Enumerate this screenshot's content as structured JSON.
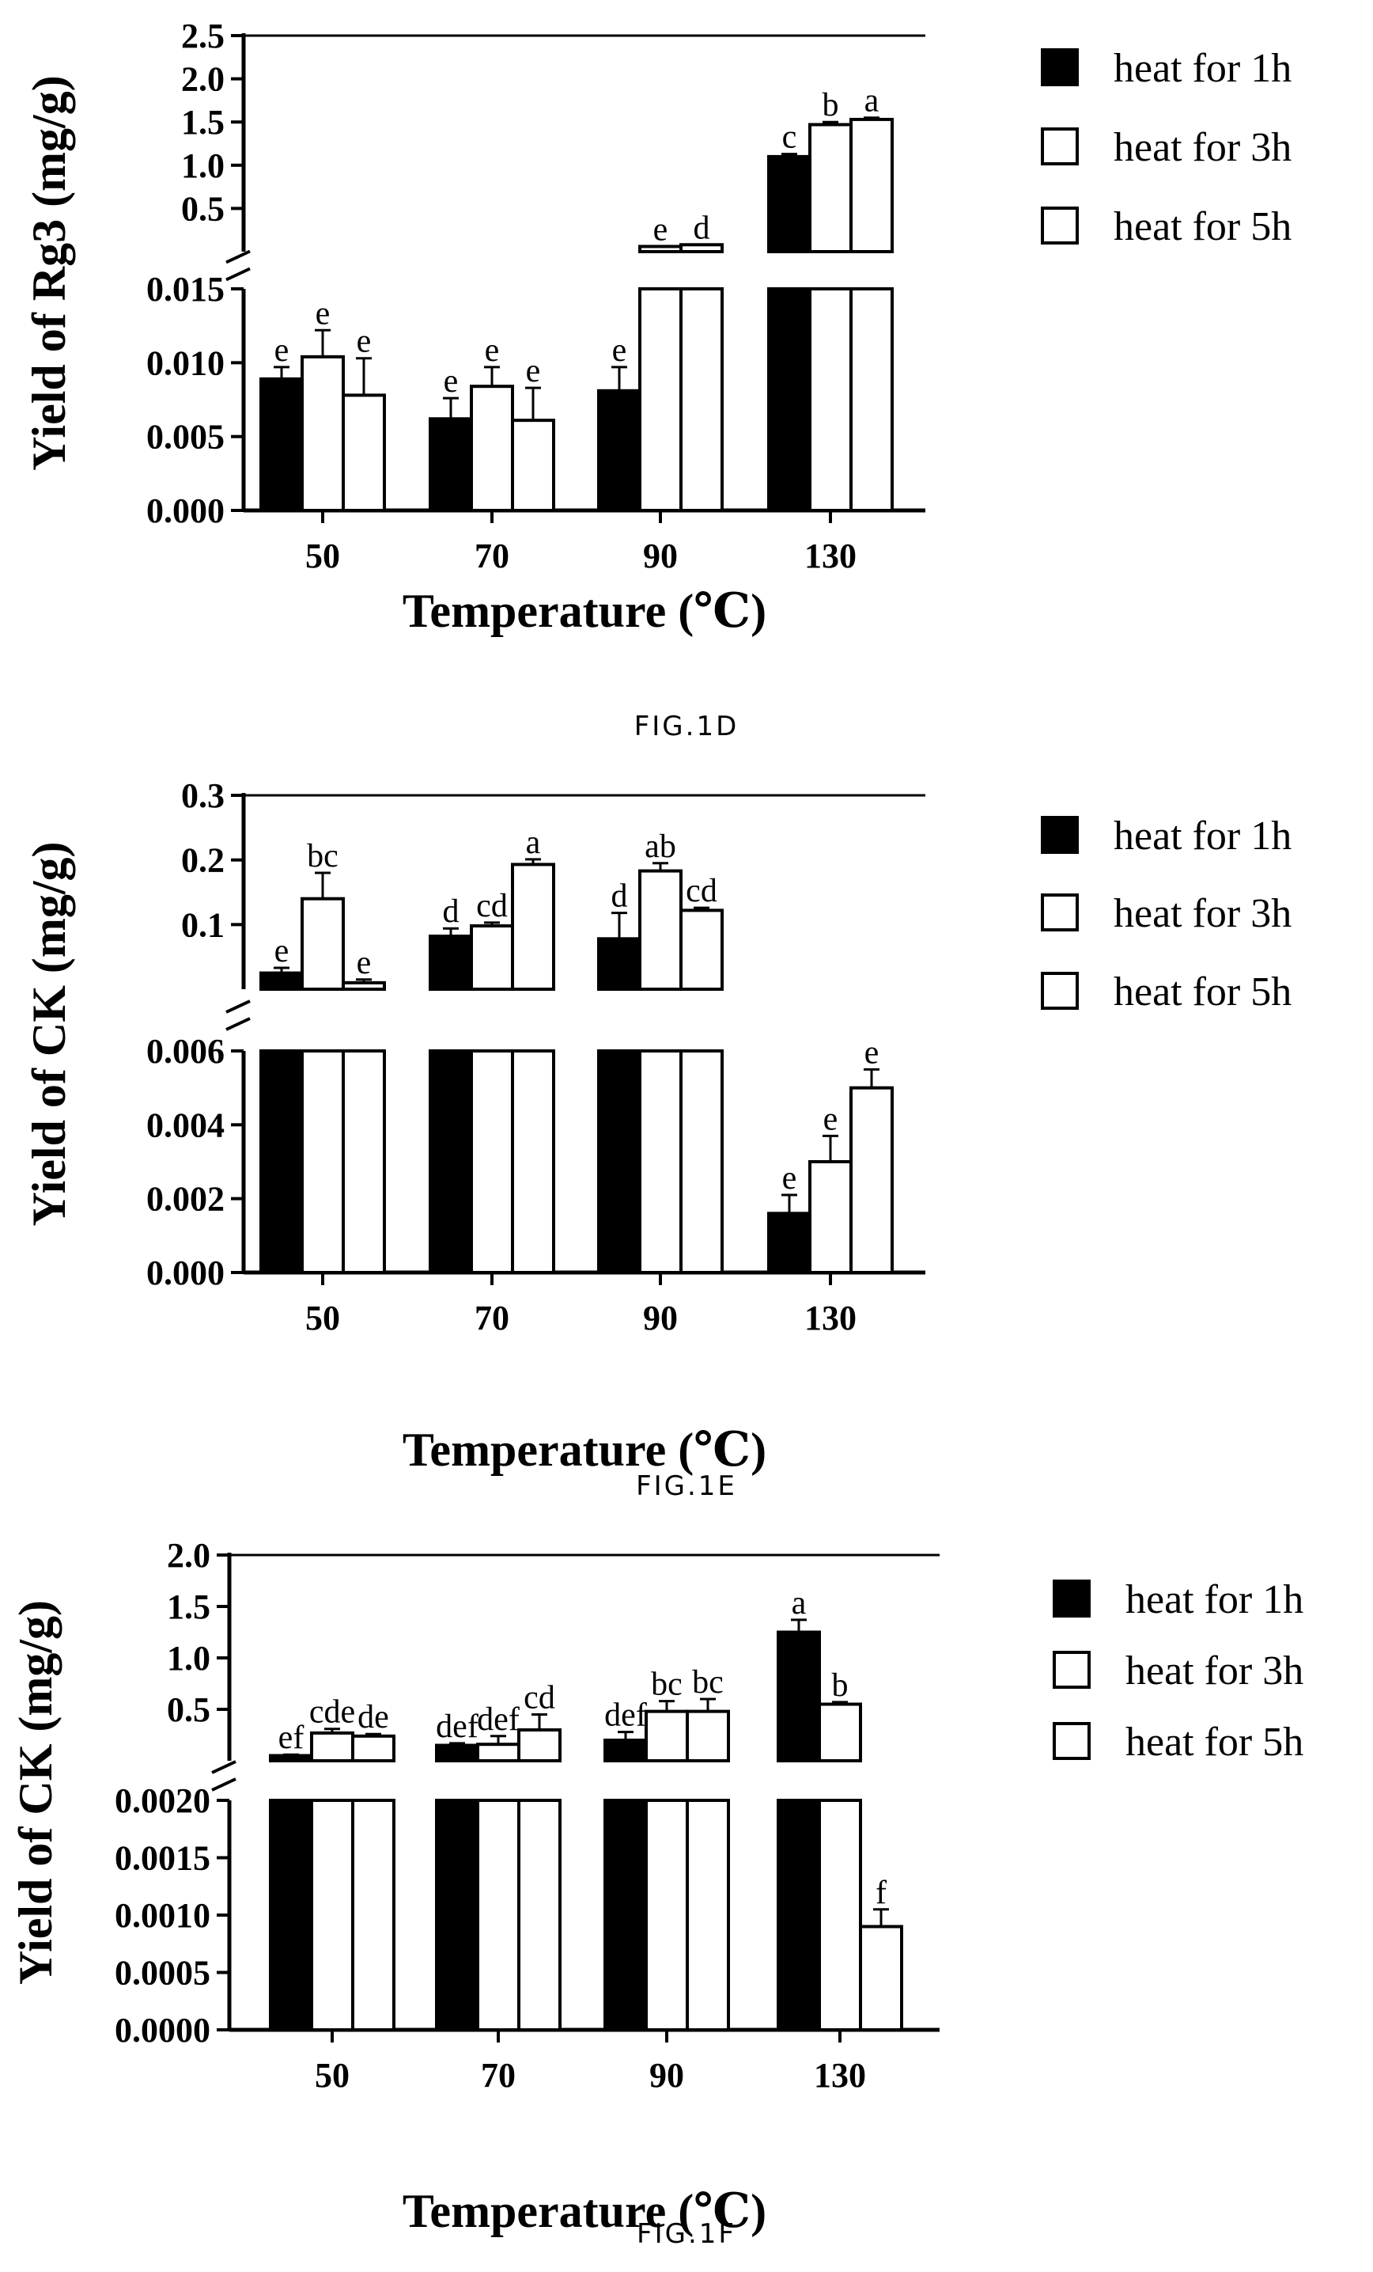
{
  "series_colors": {
    "heat for 1h": "#000000",
    "heat for 3h": "#ffffff",
    "heat for 5h": "#ffffff"
  },
  "chart_data": [
    {
      "caption": "FIG.1D",
      "type": "bar",
      "categories": [
        "50",
        "70",
        "90",
        "130"
      ],
      "xlabel": "Temperature (℃)",
      "ylabel": "Yield of Rg3 (mg/g)",
      "broken_axis": true,
      "lower_axis": {
        "ylim": [
          0,
          0.015
        ],
        "ticks": [
          "0.000",
          "0.005",
          "0.010",
          "0.015"
        ]
      },
      "upper_axis": {
        "ylim": [
          0.0,
          2.5
        ],
        "ticks": [
          "0.5",
          "1.0",
          "1.5",
          "2.0",
          "2.5"
        ]
      },
      "legend": {
        "position": "right",
        "entries": [
          "heat for 1h",
          "heat for 3h",
          "heat for 5h"
        ]
      },
      "series": [
        {
          "name": "heat for 1h",
          "values": [
            0.0089,
            0.0062,
            0.0081,
            1.1
          ],
          "errors": [
            0.0008,
            0.0014,
            0.0016,
            0.03
          ],
          "labels": [
            "e",
            "e",
            "e",
            "c"
          ]
        },
        {
          "name": "heat for 3h",
          "values": [
            0.0104,
            0.0084,
            0.06,
            1.47
          ],
          "errors": [
            0.0018,
            0.0013,
            0.0,
            0.03
          ],
          "labels": [
            "e",
            "e",
            "e",
            "b"
          ]
        },
        {
          "name": "heat for 5h",
          "values": [
            0.0078,
            0.0061,
            0.08,
            1.53
          ],
          "errors": [
            0.0025,
            0.0022,
            0.0,
            0.02
          ],
          "labels": [
            "e",
            "e",
            "d",
            "a"
          ]
        }
      ]
    },
    {
      "caption": "FIG.1E",
      "type": "bar",
      "categories": [
        "50",
        "70",
        "90",
        "130"
      ],
      "xlabel": "Temperature (℃)",
      "ylabel": "Yield of CK (mg/g)",
      "broken_axis": true,
      "lower_axis": {
        "ylim": [
          0,
          0.006
        ],
        "ticks": [
          "0.000",
          "0.002",
          "0.004",
          "0.006"
        ]
      },
      "upper_axis": {
        "ylim": [
          0.0,
          0.3
        ],
        "ticks": [
          "0.1",
          "0.2",
          "0.3"
        ]
      },
      "legend": {
        "position": "right",
        "entries": [
          "heat for 1h",
          "heat for 3h",
          "heat for 5h"
        ]
      },
      "series": [
        {
          "name": "heat for 1h",
          "values": [
            0.025,
            0.082,
            0.078,
            0.0016
          ],
          "errors": [
            0.008,
            0.012,
            0.04,
            0.0005
          ],
          "labels": [
            "e",
            "d",
            "d",
            "e"
          ]
        },
        {
          "name": "heat for 3h",
          "values": [
            0.14,
            0.098,
            0.183,
            0.003
          ],
          "errors": [
            0.04,
            0.005,
            0.012,
            0.0007
          ],
          "labels": [
            "bc",
            "cd",
            "ab",
            "e"
          ]
        },
        {
          "name": "heat for 5h",
          "values": [
            0.01,
            0.193,
            0.122,
            0.005
          ],
          "errors": [
            0.005,
            0.008,
            0.004,
            0.0005
          ],
          "labels": [
            "e",
            "a",
            "cd",
            "e"
          ]
        }
      ]
    },
    {
      "caption": "FIG.1F",
      "type": "bar",
      "categories": [
        "50",
        "70",
        "90",
        "130"
      ],
      "xlabel": "Temperature (℃)",
      "ylabel": "Yield of CK (mg/g)",
      "broken_axis": true,
      "lower_axis": {
        "ylim": [
          0,
          0.002
        ],
        "ticks": [
          "0.0000",
          "0.0005",
          "0.0010",
          "0.0015",
          "0.0020"
        ]
      },
      "upper_axis": {
        "ylim": [
          0.0,
          2.0
        ],
        "ticks": [
          "0.5",
          "1.0",
          "1.5",
          "2.0"
        ]
      },
      "legend": {
        "position": "right",
        "entries": [
          "heat for 1h",
          "heat for 3h",
          "heat for 5h"
        ]
      },
      "series": [
        {
          "name": "heat for 1h",
          "values": [
            0.05,
            0.15,
            0.2,
            1.25
          ],
          "errors": [
            0.01,
            0.02,
            0.08,
            0.12
          ],
          "labels": [
            "ef",
            "def",
            "def",
            "a"
          ]
        },
        {
          "name": "heat for 3h",
          "values": [
            0.27,
            0.16,
            0.48,
            0.55
          ],
          "errors": [
            0.04,
            0.08,
            0.1,
            0.02
          ],
          "labels": [
            "cde",
            "def",
            "bc",
            "b"
          ]
        },
        {
          "name": "heat for 5h",
          "values": [
            0.24,
            0.3,
            0.48,
            0.0009
          ],
          "errors": [
            0.02,
            0.15,
            0.12,
            0.00015
          ],
          "labels": [
            "de",
            "cd",
            "bc",
            "f"
          ]
        }
      ]
    }
  ]
}
